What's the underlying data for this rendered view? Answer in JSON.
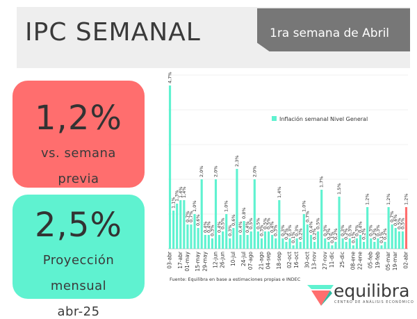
{
  "header": {
    "title": "IPC SEMANAL",
    "week_label": "1ra semana de Abril"
  },
  "cards": {
    "weekly": {
      "value": "1,2%",
      "line1": "vs. semana",
      "line2": "previa"
    },
    "monthly": {
      "value": "2,5%",
      "line1": "Proyección",
      "line2": "mensual",
      "line3": "abr-25"
    }
  },
  "footer": {
    "source": "Fuente: Equilibra en base a estimaciones propias e INDEC"
  },
  "logo": {
    "name": "equilibra",
    "tagline": "CENTRO DE ANÁLISIS ECONÓMICO"
  },
  "colors": {
    "bar": "#5ff2d0",
    "last_bar": "#ff6e6e",
    "red_card": "#ff6e6e",
    "teal_card": "#5ff2d0"
  },
  "chart_data": {
    "type": "bar",
    "legend": "Inflación semanal Nivel General",
    "legend_position": "top-right",
    "grid": true,
    "ylim": [
      0,
      5
    ],
    "x_tick_labels": [
      "03-abr",
      "17-abr",
      "01-may",
      "15-may",
      "29-may",
      "12-jun",
      "26-jun",
      "10-jul",
      "24-jul",
      "07-ago",
      "21-ago",
      "04-sep",
      "18-sep",
      "02-oct",
      "16-oct",
      "30-oct",
      "13-nov",
      "27-nov",
      "11-dic",
      "25-dic",
      "08-ene",
      "22-ene",
      "05-feb",
      "19-feb",
      "05-mar",
      "19-mar",
      "02-abr"
    ],
    "values": [
      4.7,
      1.1,
      1.3,
      1.4,
      1.4,
      0.7,
      0.7,
      1.0,
      0.6,
      2.0,
      0.4,
      0.4,
      0.3,
      2.0,
      0.4,
      0.5,
      1.0,
      0.3,
      0.6,
      2.3,
      0.4,
      0.8,
      0.4,
      0.5,
      2.0,
      0.5,
      0.3,
      0.5,
      0.5,
      0.4,
      0.3,
      1.4,
      0.3,
      0.2,
      0.3,
      0.1,
      0.3,
      0.2,
      1.0,
      0.7,
      0.4,
      0.2,
      0.5,
      1.7,
      0.3,
      0.2,
      0.1,
      0.2,
      1.5,
      0.3,
      0.2,
      0.3,
      0.1,
      0.3,
      0.4,
      0.2,
      1.2,
      0.3,
      0.2,
      0.3,
      0.1,
      0.2,
      1.2,
      0.7,
      0.6,
      0.5,
      0.5,
      1.2
    ],
    "value_labels": [
      "4,7%",
      "1,1%",
      "1,3%",
      "1,4%",
      "1,4%",
      "0,7%",
      "0,7%",
      "1,0%",
      "0,6%",
      "2,0%",
      "0,4%",
      "0,4%",
      "0,3%",
      "2,0%",
      "0,4%",
      "0,5%",
      "1,0%",
      "0,3%",
      "0,6%",
      "2,3%",
      "0,4%",
      "0,8%",
      "0,4%",
      "0,5%",
      "2,0%",
      "0,5%",
      "0,3%",
      "0,5%",
      "0,5%",
      "0,4%",
      "0,3%",
      "1,4%",
      "0,3%",
      "0,2%",
      "0,3%",
      "0,1%",
      "0,3%",
      "0,2%",
      "1,0%",
      "0,7%",
      "0,4%",
      "0,2%",
      "0,5%",
      "1,7%",
      "0,3%",
      "0,2%",
      "0,1%",
      "0,2%",
      "1,5%",
      "0,3%",
      "0,2%",
      "0,3%",
      "0,1%",
      "0,3%",
      "0,4%",
      "0,2%",
      "1,2%",
      "0,3%",
      "0,2%",
      "0,3%",
      "0,1%",
      "0,2%",
      "1,2%",
      "0,7%",
      "0,6%",
      "0,5%",
      "0,5%",
      "1,2%"
    ]
  }
}
